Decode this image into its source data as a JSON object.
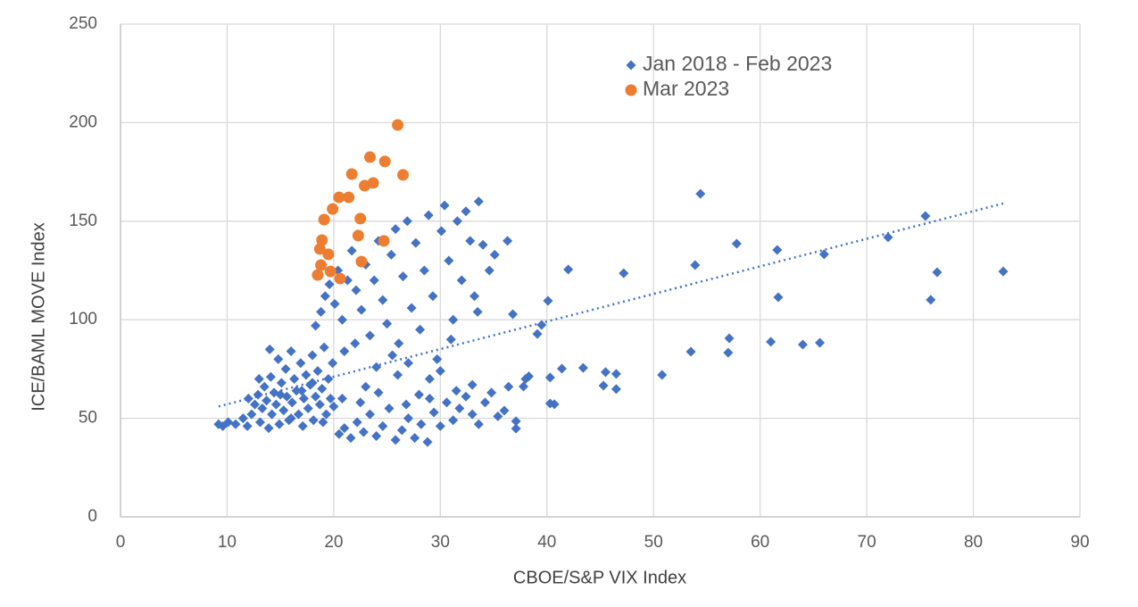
{
  "chart_data": {
    "type": "scatter",
    "xlabel": "CBOE/S&P VIX Index",
    "ylabel": "ICE/BAML MOVE Index",
    "xlim": [
      0,
      90
    ],
    "xticks": [
      0,
      10,
      20,
      30,
      40,
      50,
      60,
      70,
      80,
      90
    ],
    "ylim": [
      0,
      250
    ],
    "yticks": [
      0,
      50,
      100,
      150,
      200,
      250
    ],
    "grid": true,
    "legend": "top",
    "series": [
      {
        "name": "Jan 2018 - Feb 2023",
        "color": "#4472c4",
        "marker": "diamond",
        "x": [
          54.4,
          75.5,
          72.0,
          57.8,
          61.6,
          66.0,
          53.9,
          42.0,
          47.2,
          76.6,
          82.8,
          61.7,
          76.0,
          40.1,
          36.8,
          39.5,
          39.1,
          57.1,
          61.0,
          65.6,
          64.0,
          57.0,
          53.5,
          50.8,
          46.5,
          45.5,
          43.4,
          41.4,
          40.3,
          38.3,
          37.8,
          46.5,
          45.3,
          40.7,
          40.3,
          37.1,
          37.1,
          36.0,
          9.2,
          9.6,
          10.1,
          10.8,
          11.5,
          11.9,
          12.3,
          12.6,
          12.9,
          13.1,
          13.3,
          13.5,
          13.7,
          13.9,
          14.1,
          14.2,
          14.4,
          14.6,
          14.8,
          14.9,
          15.1,
          15.3,
          15.5,
          15.6,
          15.8,
          16.0,
          16.1,
          16.3,
          16.5,
          16.7,
          16.9,
          17.1,
          17.2,
          17.4,
          17.6,
          17.8,
          18.0,
          18.1,
          18.3,
          18.5,
          18.7,
          18.9,
          19.1,
          19.3,
          19.5,
          19.7,
          19.9,
          12.0,
          13.0,
          14.0,
          15.0,
          16.0,
          17.0,
          18.0,
          19.0,
          20.0,
          18.3,
          18.8,
          19.2,
          19.6,
          20.1,
          20.4,
          20.8,
          21.3,
          21.7,
          22.1,
          22.6,
          23.0,
          23.4,
          23.8,
          24.2,
          24.6,
          25.0,
          25.4,
          25.8,
          26.1,
          26.5,
          26.9,
          27.3,
          27.7,
          28.1,
          28.5,
          28.9,
          29.3,
          29.7,
          30.1,
          30.4,
          30.8,
          31.2,
          31.6,
          32.0,
          32.4,
          32.8,
          33.2,
          33.6,
          34.0,
          34.6,
          35.1,
          36.3,
          33.5,
          31.0,
          29.0,
          27.0,
          25.5,
          24.0,
          22.0,
          21.0,
          23.0,
          26.0,
          28.0,
          30.0,
          20.5,
          21.0,
          21.6,
          22.2,
          22.8,
          23.4,
          24.0,
          24.6,
          25.2,
          25.8,
          26.4,
          27.0,
          27.6,
          28.2,
          28.8,
          29.4,
          30.0,
          30.6,
          31.2,
          31.8,
          32.4,
          33.0,
          33.6,
          34.2,
          34.8,
          35.4,
          36.4,
          38.0,
          20.8,
          22.5,
          24.2,
          26.8,
          29.0,
          31.5,
          33.0
        ],
        "values": [
          163.9,
          152.6,
          141.8,
          138.6,
          135.4,
          133.2,
          127.7,
          125.5,
          123.6,
          124.1,
          124.5,
          111.4,
          110.1,
          109.6,
          102.8,
          97.4,
          92.8,
          90.6,
          88.8,
          88.3,
          87.4,
          83.3,
          83.8,
          72.0,
          72.5,
          73.4,
          75.6,
          75.2,
          70.7,
          71.3,
          66.1,
          64.8,
          66.6,
          57.1,
          57.5,
          44.8,
          48.5,
          53.9,
          47,
          46,
          48,
          47,
          50,
          46,
          52,
          57,
          62,
          48,
          55,
          66,
          59,
          45,
          71,
          52,
          63,
          57,
          80,
          47,
          68,
          54,
          75,
          61,
          49,
          84,
          58,
          70,
          64,
          52,
          78,
          46,
          60,
          72,
          55,
          67,
          82,
          49,
          61,
          74,
          57,
          65,
          86,
          52,
          70,
          60,
          78,
          60,
          70,
          85,
          62,
          50,
          64,
          68,
          48,
          56,
          97,
          104,
          112,
          118,
          108,
          125,
          100,
          120,
          135,
          115,
          105,
          128,
          92,
          120,
          140,
          110,
          98,
          133,
          146,
          88,
          122,
          150,
          106,
          139,
          95,
          125,
          153,
          112,
          80,
          145,
          158,
          130,
          100,
          150,
          120,
          155,
          140,
          112,
          160,
          138,
          125,
          133,
          140,
          104,
          90,
          70,
          78,
          82,
          76,
          88,
          84,
          66,
          72,
          62,
          74,
          42,
          45,
          40,
          48,
          43,
          52,
          41,
          46,
          55,
          39,
          44,
          50,
          40,
          47,
          38,
          53,
          46,
          58,
          49,
          55,
          61,
          52,
          47,
          58,
          63,
          51,
          66,
          70,
          60,
          58,
          63,
          57,
          60,
          64,
          67
        ]
      },
      {
        "name": "Mar 2023",
        "color": "#ed7d31",
        "marker": "circle",
        "x": [
          26.0,
          23.4,
          24.8,
          21.7,
          26.5,
          23.7,
          22.9,
          20.5,
          21.4,
          19.9,
          22.5,
          19.1,
          18.9,
          24.7,
          22.3,
          18.7,
          19.5,
          22.6,
          18.8,
          19.7,
          18.5,
          20.6
        ],
        "values": [
          198.8,
          182.5,
          180.3,
          173.9,
          173.5,
          169.4,
          168.0,
          162.1,
          162.1,
          156.2,
          151.3,
          150.8,
          140.4,
          140.0,
          142.7,
          135.9,
          133.2,
          129.5,
          127.7,
          124.5,
          122.7,
          120.9
        ]
      }
    ],
    "trendline": {
      "x": [
        9.2,
        82.8
      ],
      "values": [
        56,
        159
      ],
      "color": "#4472c4",
      "style": "dotted"
    }
  }
}
